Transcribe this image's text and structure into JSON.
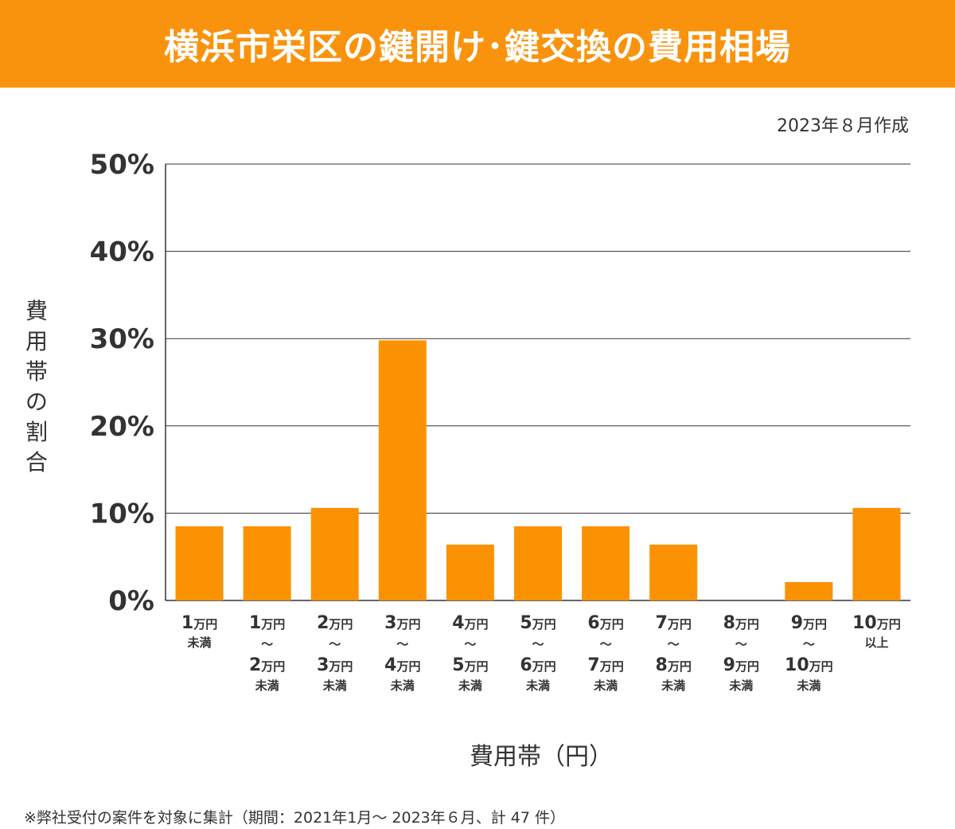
{
  "header": {
    "title": "横浜市栄区の鍵開け･鍵交換の費用相場"
  },
  "created": "2023年８月作成",
  "colors": {
    "accent": "#f9930d",
    "bar": "#fb9204",
    "text": "#333333",
    "grid": "#333333"
  },
  "chart_data": {
    "type": "bar",
    "title": "横浜市栄区の鍵開け･鍵交換の費用相場",
    "ylabel": "費用帯の割合",
    "xlabel": "費用帯（円）",
    "ylim": [
      0,
      50
    ],
    "yticks": [
      0,
      10,
      20,
      30,
      40,
      50
    ],
    "ytick_labels": [
      "0%",
      "10%",
      "20%",
      "30%",
      "40%",
      "50%"
    ],
    "grid": true,
    "categories": [
      "1万円未満",
      "1万円～2万円未満",
      "2万円～3万円未満",
      "3万円～4万円未満",
      "4万円～5万円未満",
      "5万円～6万円未満",
      "6万円～7万円未満",
      "7万円～8万円未満",
      "8万円～9万円未満",
      "9万円～10万円未満",
      "10万円以上"
    ],
    "category_labels": [
      {
        "from": "1",
        "to": null,
        "suffix": "未満"
      },
      {
        "from": "1",
        "to": "2",
        "suffix": "未満"
      },
      {
        "from": "2",
        "to": "3",
        "suffix": "未満"
      },
      {
        "from": "3",
        "to": "4",
        "suffix": "未満"
      },
      {
        "from": "4",
        "to": "5",
        "suffix": "未満"
      },
      {
        "from": "5",
        "to": "6",
        "suffix": "未満"
      },
      {
        "from": "6",
        "to": "7",
        "suffix": "未満"
      },
      {
        "from": "7",
        "to": "8",
        "suffix": "未満"
      },
      {
        "from": "8",
        "to": "9",
        "suffix": "未満"
      },
      {
        "from": "9",
        "to": "10",
        "suffix": "未満"
      },
      {
        "from": "10",
        "to": null,
        "suffix": "以上"
      }
    ],
    "unit_label": "万円",
    "range_sep": "～",
    "values": [
      8.5,
      8.5,
      10.6,
      29.8,
      6.4,
      8.5,
      8.5,
      6.4,
      0,
      2.1,
      10.6
    ]
  },
  "footnote": "※弊社受付の案件を対象に集計（期間：2021年1月～ 2023年６月、計 47 件）"
}
